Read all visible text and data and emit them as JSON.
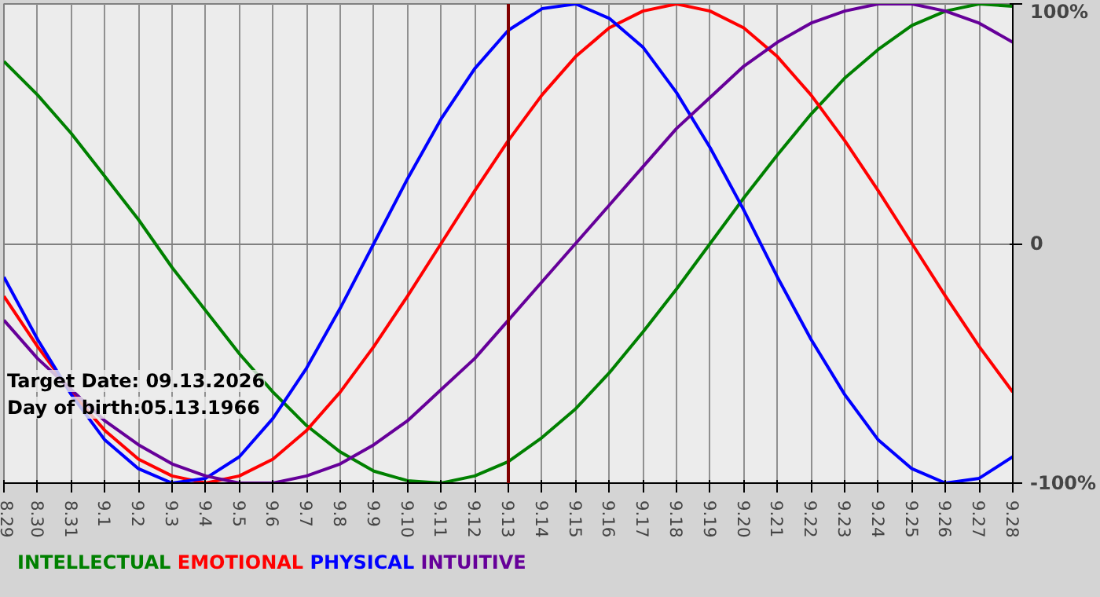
{
  "chart_data": {
    "type": "line",
    "categories": [
      "8.29",
      "8.30",
      "8.31",
      "9.1",
      "9.2",
      "9.3",
      "9.4",
      "9.5",
      "9.6",
      "9.7",
      "9.8",
      "9.9",
      "9.10",
      "9.11",
      "9.12",
      "9.13",
      "9.14",
      "9.15",
      "9.16",
      "9.17",
      "9.18",
      "9.19",
      "9.20",
      "9.21",
      "9.22",
      "9.23",
      "9.24",
      "9.25",
      "9.26",
      "9.27",
      "9.28"
    ],
    "series": [
      {
        "name": "INTELLECTUAL",
        "color": "#008000",
        "values": [
          76,
          62,
          46,
          28,
          10,
          -10,
          -28,
          -46,
          -62,
          -76,
          -87,
          -95,
          -99,
          -100,
          -97,
          -91,
          -81,
          -69,
          -54,
          -37,
          -19,
          0,
          19,
          37,
          54,
          69,
          81,
          91,
          97,
          100,
          99
        ]
      },
      {
        "name": "EMOTIONAL",
        "color": "#ff0000",
        "values": [
          -22,
          -43,
          -62,
          -78,
          -90,
          -97,
          -100,
          -97,
          -90,
          -78,
          -62,
          -43,
          -22,
          0,
          22,
          43,
          62,
          78,
          90,
          97,
          100,
          97,
          90,
          78,
          62,
          43,
          22,
          0,
          -22,
          -43,
          -62
        ]
      },
      {
        "name": "PHYSICAL",
        "color": "#0000ff",
        "values": [
          -14,
          -40,
          -63,
          -82,
          -94,
          -100,
          -98,
          -89,
          -73,
          -52,
          -27,
          0,
          27,
          52,
          73,
          89,
          98,
          100,
          94,
          82,
          63,
          40,
          14,
          -14,
          -40,
          -63,
          -82,
          -94,
          -100,
          -98,
          -89
        ]
      },
      {
        "name": "INTUITIVE",
        "color": "#660099",
        "values": [
          -32,
          -48,
          -61,
          -74,
          -84,
          -92,
          -97,
          -100,
          -100,
          -97,
          -92,
          -84,
          -74,
          -61,
          -48,
          -32,
          -16,
          0,
          16,
          32,
          48,
          61,
          74,
          84,
          92,
          97,
          100,
          100,
          97,
          92,
          84
        ]
      }
    ],
    "ylim": [
      -100,
      100
    ],
    "yticks": [
      {
        "value": 100,
        "label": "100%"
      },
      0,
      {
        "value": -100,
        "label": "-100%"
      }
    ],
    "ref_lines": [
      {
        "axis": "x",
        "value": "9.13",
        "color": "#800000"
      }
    ],
    "annotations": [
      "Target Date: 09.13.2026",
      "Day of birth:05.13.1966"
    ],
    "grid": true,
    "legend": "bottom",
    "marker": "none",
    "line_style": "solid"
  }
}
